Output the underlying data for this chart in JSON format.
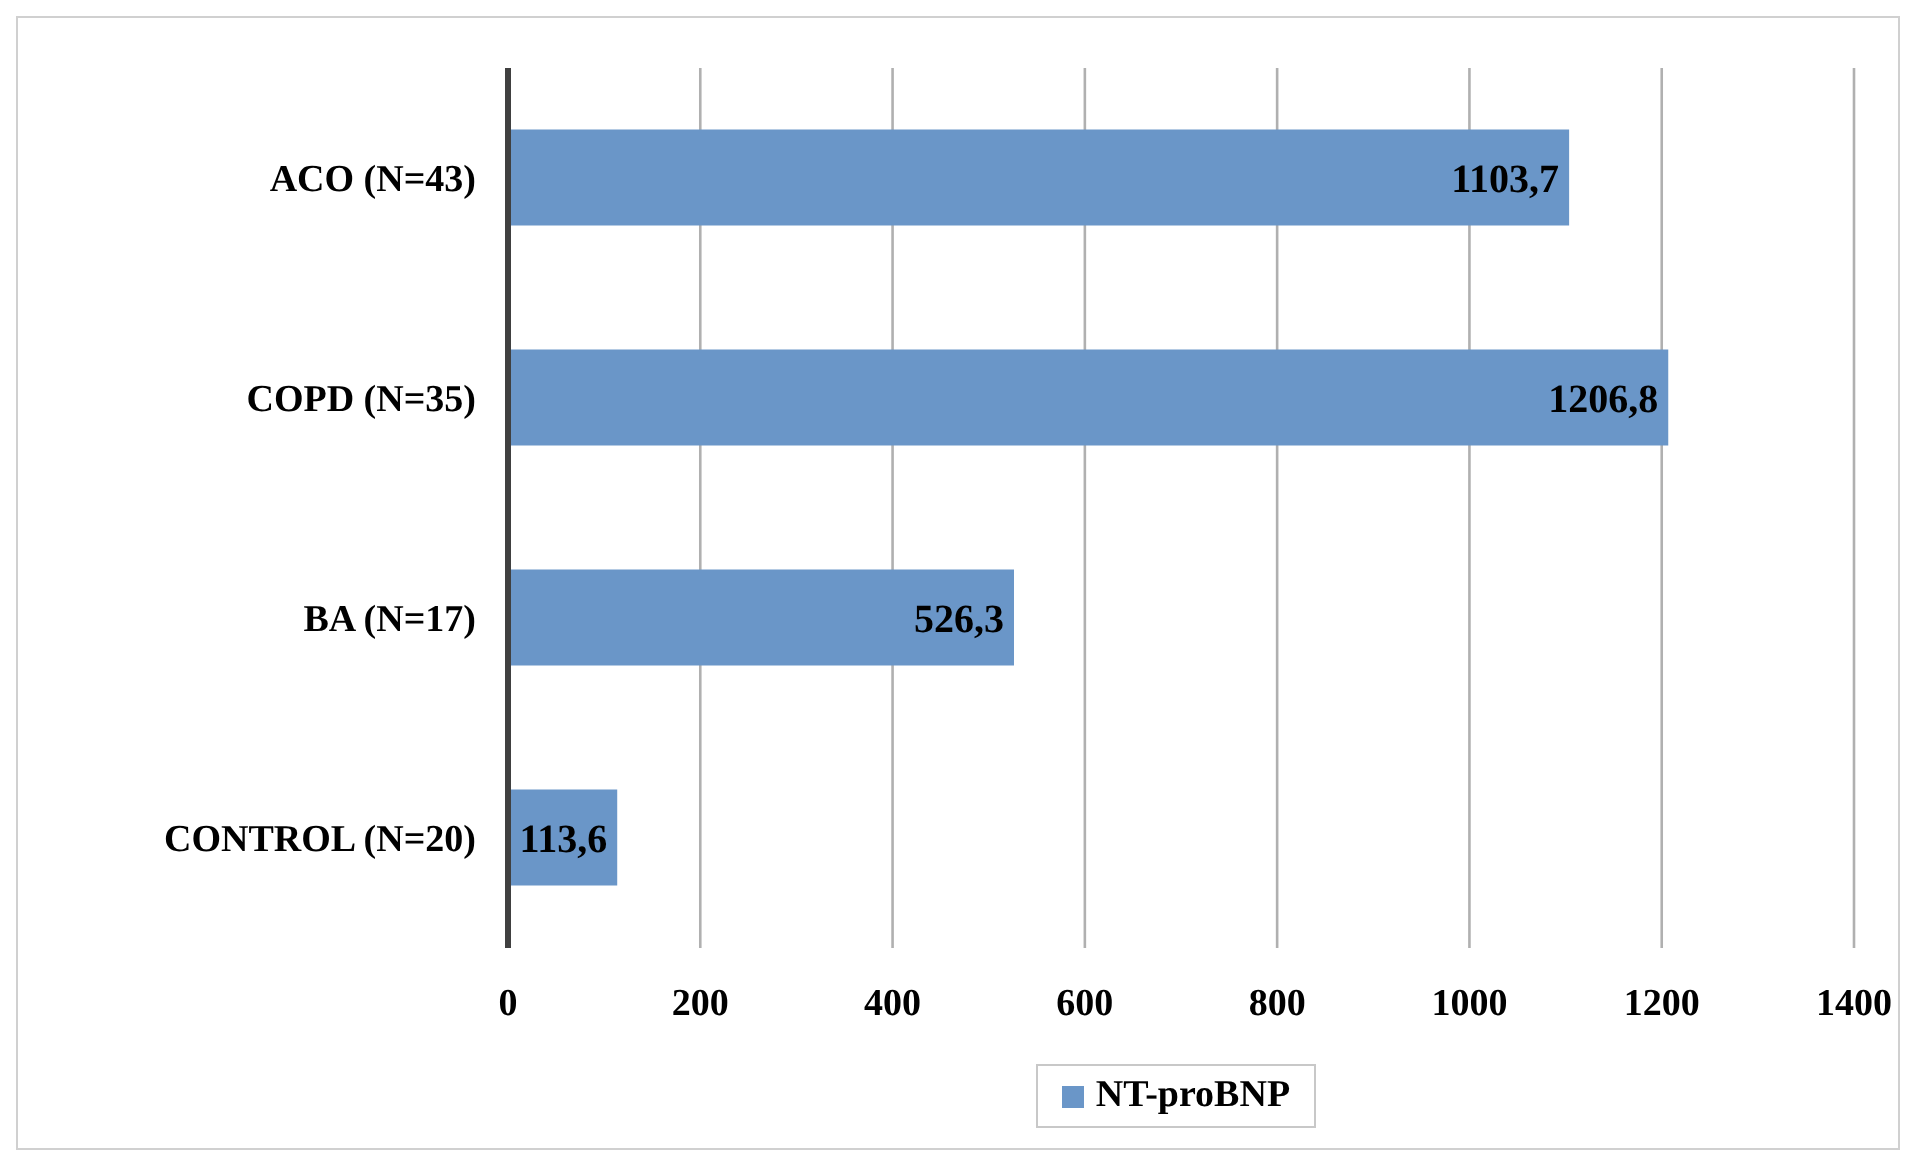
{
  "chart_data": {
    "type": "bar",
    "orientation": "horizontal",
    "categories": [
      "ACO (N=43)",
      "COPD (N=35)",
      "BA (N=17)",
      "CONTROL (N=20)"
    ],
    "series": [
      {
        "name": "NT-proBNP",
        "color": "#6a96c8",
        "values": [
          1103.7,
          1206.8,
          526.3,
          113.6
        ],
        "value_labels": [
          "1103,7",
          "1206,8",
          "526,3",
          "113,6"
        ]
      }
    ],
    "xlim": [
      0,
      1400
    ],
    "xticks": [
      0,
      200,
      400,
      600,
      800,
      1000,
      1200,
      1400
    ],
    "grid": "x",
    "legend": "bottom"
  }
}
